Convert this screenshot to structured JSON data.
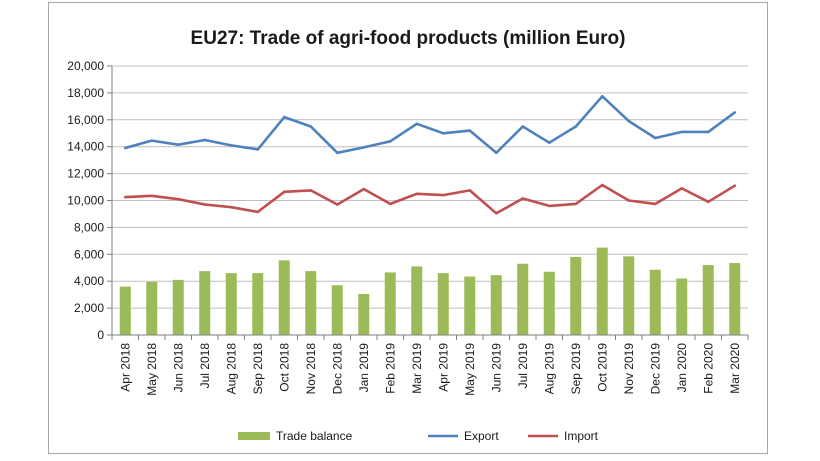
{
  "chart_data": {
    "type": "bar+line",
    "title": "EU27: Trade of agri-food products (million Euro)",
    "xlabel": "",
    "ylabel": "",
    "ylim": [
      0,
      20000
    ],
    "yticks": [
      0,
      2000,
      4000,
      6000,
      8000,
      10000,
      12000,
      14000,
      16000,
      18000,
      20000
    ],
    "ytick_labels": [
      "0",
      "2,000",
      "4,000",
      "6,000",
      "8,000",
      "10,000",
      "12,000",
      "14,000",
      "16,000",
      "18,000",
      "20,000"
    ],
    "grid": true,
    "legend_position": "bottom",
    "categories": [
      "Apr 2018",
      "May 2018",
      "Jun 2018",
      "Jul 2018",
      "Aug 2018",
      "Sep 2018",
      "Oct 2018",
      "Nov 2018",
      "Dec 2018",
      "Jan 2019",
      "Feb 2019",
      "Mar 2019",
      "Apr 2019",
      "May 2019",
      "Jun 2019",
      "Jul 2019",
      "Aug 2019",
      "Sep 2019",
      "Oct 2019",
      "Nov 2019",
      "Dec 2019",
      "Jan 2020",
      "Feb 2020",
      "Mar 2020"
    ],
    "series": [
      {
        "name": "Trade balance",
        "kind": "bar",
        "color": "#9bbb59",
        "values": [
          3600,
          3950,
          4100,
          4750,
          4600,
          4600,
          5550,
          4750,
          3700,
          3050,
          4650,
          5100,
          4600,
          4350,
          4450,
          5300,
          4700,
          5800,
          6500,
          5850,
          4850,
          4200,
          5200,
          5350
        ]
      },
      {
        "name": "Export",
        "kind": "line",
        "color": "#4f81bd",
        "values": [
          13900,
          14450,
          14150,
          14500,
          14100,
          13800,
          16200,
          15500,
          13550,
          13950,
          14400,
          15700,
          15000,
          15200,
          13550,
          15500,
          14300,
          15500,
          17750,
          15900,
          14650,
          15100,
          15100,
          16550
        ]
      },
      {
        "name": "Import",
        "kind": "line",
        "color": "#c0504d",
        "values": [
          10250,
          10350,
          10100,
          9700,
          9500,
          9150,
          10650,
          10750,
          9700,
          10850,
          9750,
          10500,
          10400,
          10750,
          9050,
          10150,
          9600,
          9750,
          11150,
          10000,
          9750,
          10900,
          9900,
          11100
        ]
      }
    ]
  }
}
